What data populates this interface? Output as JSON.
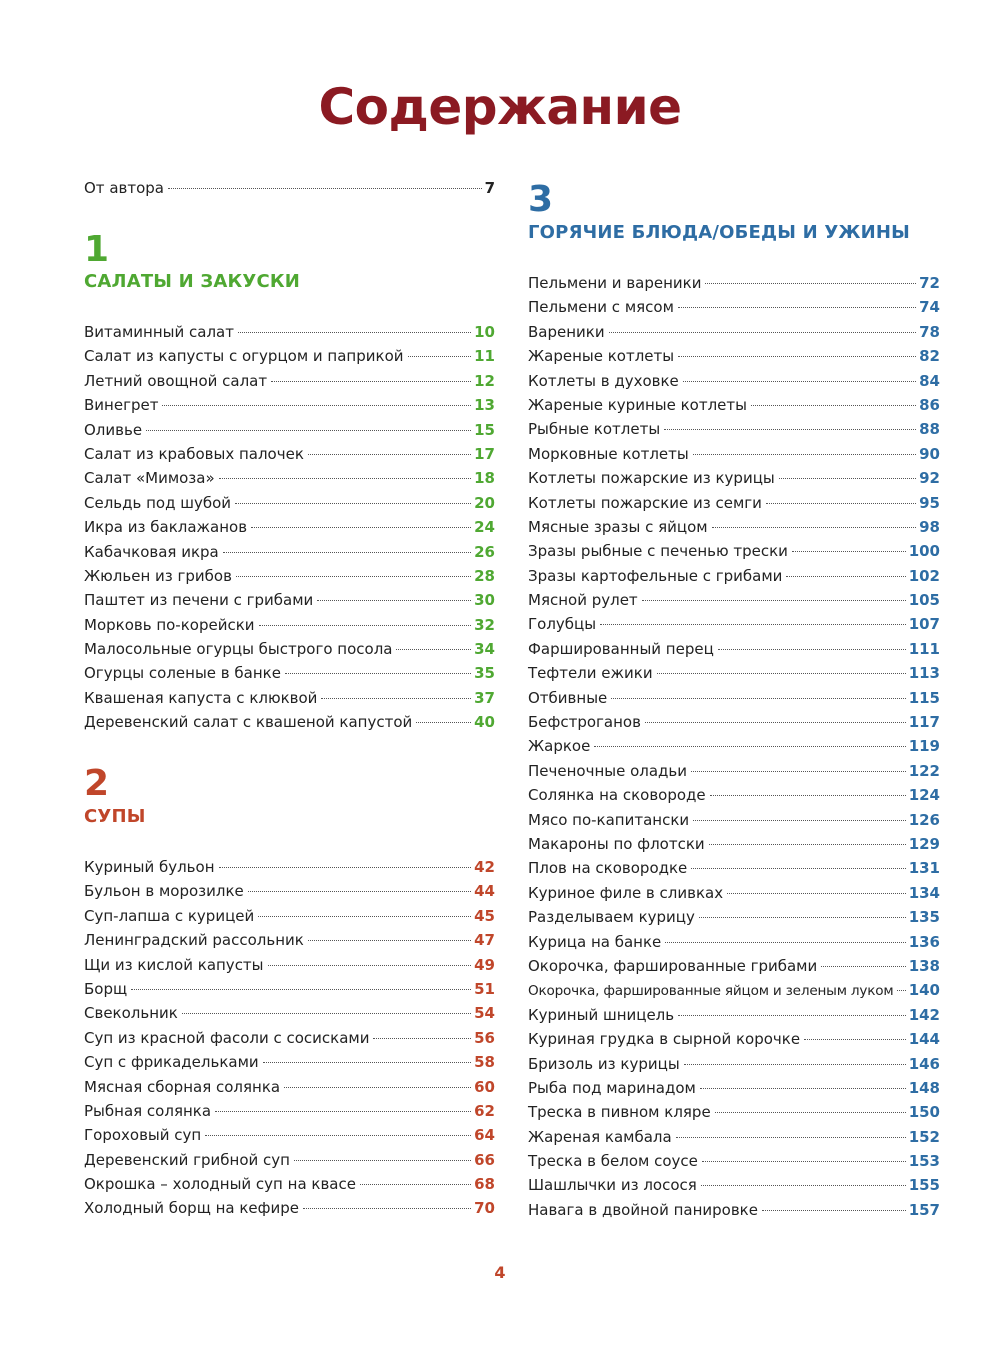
{
  "title": "Содержание",
  "intro": {
    "title": "От автора",
    "page": "7"
  },
  "sections": [
    {
      "number": "1",
      "title": "САЛАТЫ И ЗАКУСКИ",
      "entries": [
        [
          "Витаминный салат",
          "10"
        ],
        [
          "Салат из капусты с огурцом и паприкой",
          "11"
        ],
        [
          "Летний овощной салат",
          "12"
        ],
        [
          "Винегрет",
          "13"
        ],
        [
          "Оливье",
          "15"
        ],
        [
          "Салат из крабовых палочек",
          "17"
        ],
        [
          "Салат «Мимоза»",
          "18"
        ],
        [
          "Сельдь под шубой",
          "20"
        ],
        [
          "Икра из баклажанов",
          "24"
        ],
        [
          "Кабачковая икра",
          "26"
        ],
        [
          "Жюльен из грибов",
          "28"
        ],
        [
          "Паштет из печени с грибами",
          "30"
        ],
        [
          "Морковь по-корейски",
          "32"
        ],
        [
          "Малосольные огурцы быстрого посола",
          "34"
        ],
        [
          "Огурцы соленые в банке",
          "35"
        ],
        [
          "Квашеная капуста с клюквой",
          "37"
        ],
        [
          "Деревенский салат с квашеной капустой",
          "40"
        ]
      ]
    },
    {
      "number": "2",
      "title": "СУПЫ",
      "entries": [
        [
          "Куриный бульон",
          "42"
        ],
        [
          "Бульон в морозилке",
          "44"
        ],
        [
          "Суп-лапша с курицей",
          "45"
        ],
        [
          "Ленинградский рассольник",
          "47"
        ],
        [
          "Щи из кислой капусты",
          "49"
        ],
        [
          "Борщ",
          "51"
        ],
        [
          "Свекольник",
          "54"
        ],
        [
          "Суп из красной фасоли с сосисками",
          "56"
        ],
        [
          "Суп с фрикадельками",
          "58"
        ],
        [
          "Мясная сборная солянка",
          "60"
        ],
        [
          "Рыбная солянка",
          "62"
        ],
        [
          "Гороховый суп",
          "64"
        ],
        [
          "Деревенский грибной суп",
          "66"
        ],
        [
          "Окрошка – холодный суп на квасе",
          "68"
        ],
        [
          "Холодный борщ на кефире",
          "70"
        ]
      ]
    },
    {
      "number": "3",
      "title": "ГОРЯЧИЕ БЛЮДА/ОБЕДЫ И УЖИНЫ",
      "entries": [
        [
          "Пельмени и вареники",
          "72"
        ],
        [
          "Пельмени с мясом",
          "74"
        ],
        [
          "Вареники",
          "78"
        ],
        [
          "Жареные котлеты",
          "82"
        ],
        [
          "Котлеты в духовке",
          "84"
        ],
        [
          "Жареные куриные котлеты",
          "86"
        ],
        [
          "Рыбные котлеты",
          "88"
        ],
        [
          "Морковные котлеты",
          "90"
        ],
        [
          "Котлеты пожарские из курицы",
          "92"
        ],
        [
          "Котлеты пожарские из семги",
          "95"
        ],
        [
          "Мясные зразы с яйцом",
          "98"
        ],
        [
          "Зразы рыбные с печенью трески",
          "100"
        ],
        [
          "Зразы картофельные с грибами",
          "102"
        ],
        [
          "Мясной рулет",
          "105"
        ],
        [
          "Голубцы",
          "107"
        ],
        [
          "Фаршированный перец",
          "111"
        ],
        [
          "Тефтели ежики",
          "113"
        ],
        [
          "Отбивные",
          "115"
        ],
        [
          "Бефстроганов",
          "117"
        ],
        [
          "Жаркое",
          "119"
        ],
        [
          "Печеночные оладьи",
          "122"
        ],
        [
          "Солянка на сковороде",
          "124"
        ],
        [
          "Мясо по-капитански",
          "126"
        ],
        [
          "Макароны по флотски",
          "129"
        ],
        [
          "Плов на сковородке",
          "131"
        ],
        [
          "Куриное филе в сливках",
          "134"
        ],
        [
          "Разделываем курицу",
          "135"
        ],
        [
          "Курица на банке",
          "136"
        ],
        [
          "Окорочка, фаршированные грибами",
          "138"
        ],
        [
          "Окорочка, фаршированные яйцом и зеленым луком",
          "140"
        ],
        [
          "Куриный шницель",
          "142"
        ],
        [
          "Куриная грудка в сырной корочке",
          "144"
        ],
        [
          "Бризоль из курицы",
          "146"
        ],
        [
          "Рыба под маринадом",
          "148"
        ],
        [
          "Треска в пивном кляре",
          "150"
        ],
        [
          "Жареная камбала",
          "152"
        ],
        [
          "Треска в белом соусе",
          "153"
        ],
        [
          "Шашлычки из лосося",
          "155"
        ],
        [
          "Навага в двойной панировке",
          "157"
        ]
      ]
    }
  ],
  "page_number": "4",
  "colors": {
    "title": "#8b1a22",
    "section1": "#4fa832",
    "section2": "#c0462a",
    "section3": "#2e6da4"
  }
}
